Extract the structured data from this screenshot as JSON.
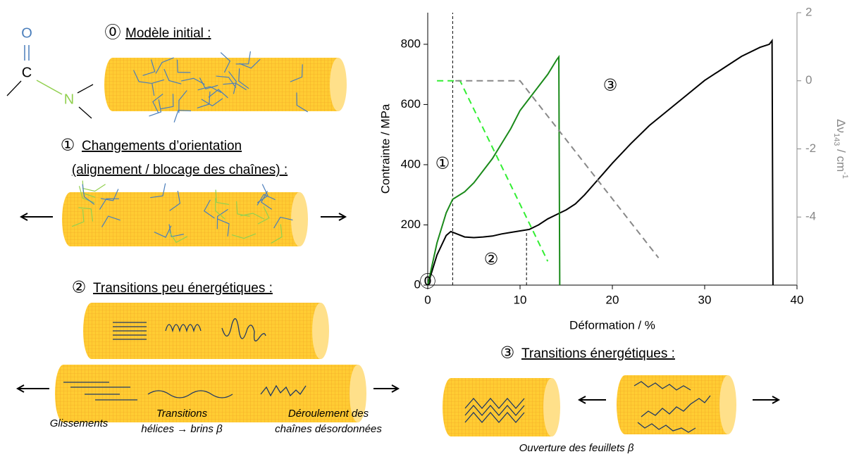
{
  "molecule": {
    "o": "O",
    "c": "C",
    "n": "N"
  },
  "steps": [
    {
      "number": "⓪",
      "title": "Modèle initial :"
    },
    {
      "number": "①",
      "title": "Changements d’orientation",
      "subtitle": "(alignement / blocage des chaînes) :"
    },
    {
      "number": "②",
      "title": "Transitions peu énergétiques :"
    },
    {
      "number": "③",
      "title": "Transitions énergétiques :"
    }
  ],
  "captions": [
    "Glissements",
    "Transitions",
    "hélices → brins β",
    "Déroulement des",
    "chaînes désordonnées",
    "Ouverture des feuillets β"
  ],
  "chart_data": {
    "type": "line",
    "x_label": "Déformation / %",
    "y_label": "Contrainte / MPa",
    "y2_label": [
      "Δν",
      "143",
      " / cm",
      "-1"
    ],
    "xlim": [
      0,
      40
    ],
    "xticks": [
      0,
      10,
      20,
      30,
      40
    ],
    "ylim": [
      0,
      905
    ],
    "yticks": [
      0,
      200,
      400,
      600,
      800
    ],
    "y2lim": [
      -6,
      2
    ],
    "y2ticks": [
      -4,
      -2,
      0,
      2
    ],
    "series": [
      {
        "color": "#000000",
        "style": "solid",
        "x": [
          0,
          1,
          2,
          2.5,
          3,
          4,
          5,
          6,
          7,
          8,
          9,
          10,
          11,
          12,
          13,
          14,
          15,
          16,
          17,
          18,
          19,
          20,
          22,
          24,
          26,
          28,
          30,
          32,
          34,
          36,
          37,
          37.3,
          37.4
        ],
        "values": [
          0,
          100,
          165,
          178,
          172,
          160,
          158,
          160,
          163,
          170,
          175,
          180,
          185,
          200,
          220,
          235,
          250,
          270,
          300,
          335,
          370,
          405,
          470,
          530,
          580,
          630,
          680,
          720,
          760,
          790,
          800,
          812,
          0
        ]
      },
      {
        "color": "#1a8a1a",
        "style": "solid",
        "x": [
          0,
          1,
          2,
          2.7,
          4,
          5,
          6,
          7,
          8,
          9,
          10,
          11,
          12,
          13,
          14,
          14.2,
          14.3
        ],
        "values": [
          0,
          140,
          240,
          285,
          310,
          340,
          380,
          420,
          470,
          520,
          580,
          620,
          660,
          700,
          750,
          758,
          0
        ]
      },
      {
        "color": "#33ee33",
        "style": "dashed",
        "axis": "y2",
        "x": [
          1,
          3.5,
          13
        ],
        "values": [
          0,
          0,
          -5.3
        ]
      },
      {
        "color": "#888888",
        "style": "dashed",
        "axis": "y2",
        "x": [
          3,
          10,
          25
        ],
        "values": [
          0,
          0,
          -5.2
        ]
      }
    ],
    "vlines": [
      {
        "x": 2.7,
        "y": 905
      },
      {
        "x": 10.7,
        "y": 180
      }
    ],
    "annotations": [
      "⓪",
      "①",
      "②",
      "③"
    ]
  }
}
